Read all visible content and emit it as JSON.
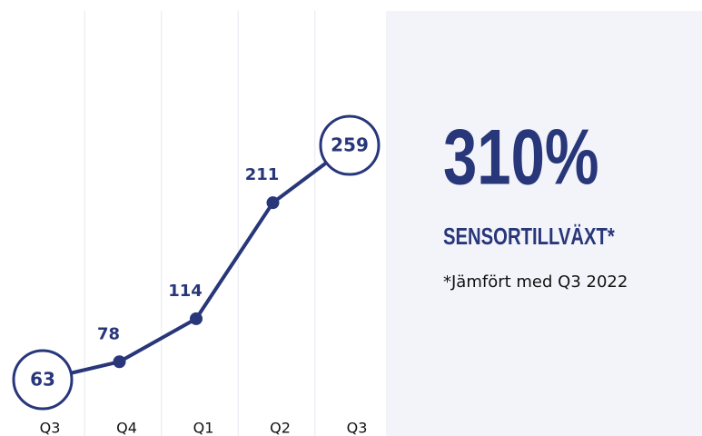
{
  "chart_data": {
    "type": "line",
    "categories": [
      "Q3",
      "Q4",
      "Q1",
      "Q2",
      "Q3"
    ],
    "values": [
      63,
      78,
      114,
      211,
      259
    ],
    "color": "#28367a"
  },
  "panel": {
    "headline": "310%",
    "subtitle": "SENSORTILLVÄXT*",
    "note": "*Jämfört med Q3 2022"
  }
}
